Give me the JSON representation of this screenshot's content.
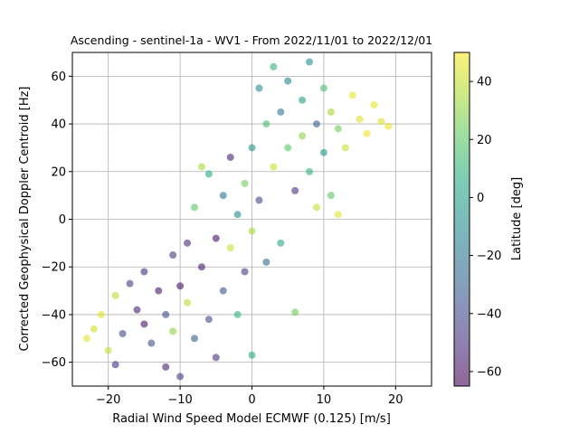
{
  "chart_data": {
    "type": "scatter",
    "title": "Ascending - sentinel-1a - WV1 - From 2022/11/01 to 2022/12/01",
    "xlabel": "Radial Wind Speed Model ECMWF (0.125) [m/s]",
    "ylabel": "Corrected Geophysical Doppler Centroid [Hz]",
    "xlim": [
      -25,
      25
    ],
    "ylim": [
      -70,
      70
    ],
    "xticks": [
      -20,
      -10,
      0,
      10,
      20
    ],
    "yticks": [
      -60,
      -40,
      -20,
      0,
      20,
      40,
      60
    ],
    "grid": true,
    "colormap": "viridis",
    "marker_alpha": 0.6,
    "colorbar": {
      "label": "Latitude [deg]",
      "range": [
        -65,
        50
      ],
      "ticks": [
        -60,
        -40,
        -20,
        0,
        20,
        40
      ]
    },
    "points": [
      {
        "x": -23,
        "y": -50,
        "c": 45
      },
      {
        "x": -22,
        "y": -46,
        "c": 42
      },
      {
        "x": -21,
        "y": -40,
        "c": 44
      },
      {
        "x": -20,
        "y": -55,
        "c": 40
      },
      {
        "x": -19,
        "y": -32,
        "c": 38
      },
      {
        "x": -19,
        "y": -61,
        "c": -50
      },
      {
        "x": -18,
        "y": -48,
        "c": -40
      },
      {
        "x": -17,
        "y": -27,
        "c": -45
      },
      {
        "x": -16,
        "y": -38,
        "c": -55
      },
      {
        "x": -15,
        "y": -44,
        "c": -60
      },
      {
        "x": -15,
        "y": -22,
        "c": -50
      },
      {
        "x": -14,
        "y": -52,
        "c": -35
      },
      {
        "x": -13,
        "y": -30,
        "c": -58
      },
      {
        "x": -12,
        "y": -40,
        "c": -40
      },
      {
        "x": -12,
        "y": -62,
        "c": -55
      },
      {
        "x": -11,
        "y": -15,
        "c": -48
      },
      {
        "x": -11,
        "y": -47,
        "c": 30
      },
      {
        "x": -10,
        "y": -28,
        "c": -60
      },
      {
        "x": -10,
        "y": -66,
        "c": -45
      },
      {
        "x": -9,
        "y": -10,
        "c": -52
      },
      {
        "x": -9,
        "y": -35,
        "c": 38
      },
      {
        "x": -8,
        "y": -50,
        "c": -30
      },
      {
        "x": -8,
        "y": 5,
        "c": 20
      },
      {
        "x": -7,
        "y": -20,
        "c": -58
      },
      {
        "x": -7,
        "y": 22,
        "c": 35
      },
      {
        "x": -6,
        "y": -42,
        "c": -40
      },
      {
        "x": -6,
        "y": 19,
        "c": 5
      },
      {
        "x": -5,
        "y": -8,
        "c": -60
      },
      {
        "x": -5,
        "y": -58,
        "c": -50
      },
      {
        "x": -4,
        "y": 10,
        "c": -20
      },
      {
        "x": -4,
        "y": -30,
        "c": -35
      },
      {
        "x": -3,
        "y": -12,
        "c": 40
      },
      {
        "x": -3,
        "y": 26,
        "c": -55
      },
      {
        "x": -2,
        "y": 2,
        "c": -10
      },
      {
        "x": -2,
        "y": -40,
        "c": 10
      },
      {
        "x": -1,
        "y": 15,
        "c": 25
      },
      {
        "x": -1,
        "y": -22,
        "c": -45
      },
      {
        "x": 0,
        "y": 30,
        "c": -5
      },
      {
        "x": 0,
        "y": -5,
        "c": 35
      },
      {
        "x": 0,
        "y": -57,
        "c": 5
      },
      {
        "x": 1,
        "y": 55,
        "c": -10
      },
      {
        "x": 1,
        "y": 8,
        "c": -40
      },
      {
        "x": 2,
        "y": 40,
        "c": 15
      },
      {
        "x": 2,
        "y": -18,
        "c": -25
      },
      {
        "x": 3,
        "y": 22,
        "c": 40
      },
      {
        "x": 3,
        "y": 64,
        "c": 10
      },
      {
        "x": 4,
        "y": 45,
        "c": -20
      },
      {
        "x": 4,
        "y": -10,
        "c": 5
      },
      {
        "x": 5,
        "y": 30,
        "c": 20
      },
      {
        "x": 5,
        "y": 58,
        "c": -15
      },
      {
        "x": 6,
        "y": 12,
        "c": -50
      },
      {
        "x": 6,
        "y": -39,
        "c": 25
      },
      {
        "x": 7,
        "y": 50,
        "c": 0
      },
      {
        "x": 7,
        "y": 35,
        "c": 30
      },
      {
        "x": 8,
        "y": 66,
        "c": -10
      },
      {
        "x": 8,
        "y": 20,
        "c": 10
      },
      {
        "x": 9,
        "y": 40,
        "c": -30
      },
      {
        "x": 9,
        "y": 5,
        "c": 40
      },
      {
        "x": 10,
        "y": 55,
        "c": 15
      },
      {
        "x": 10,
        "y": 28,
        "c": -5
      },
      {
        "x": 11,
        "y": 45,
        "c": 35
      },
      {
        "x": 11,
        "y": 10,
        "c": 20
      },
      {
        "x": 12,
        "y": 38,
        "c": 25
      },
      {
        "x": 12,
        "y": 2,
        "c": 45
      },
      {
        "x": 13,
        "y": 30,
        "c": 40
      },
      {
        "x": 14,
        "y": 52,
        "c": 46
      },
      {
        "x": 15,
        "y": 42,
        "c": 44
      },
      {
        "x": 16,
        "y": 36,
        "c": 48
      },
      {
        "x": 17,
        "y": 48,
        "c": 46
      },
      {
        "x": 18,
        "y": 41,
        "c": 45
      },
      {
        "x": 19,
        "y": 39,
        "c": 48
      }
    ]
  }
}
